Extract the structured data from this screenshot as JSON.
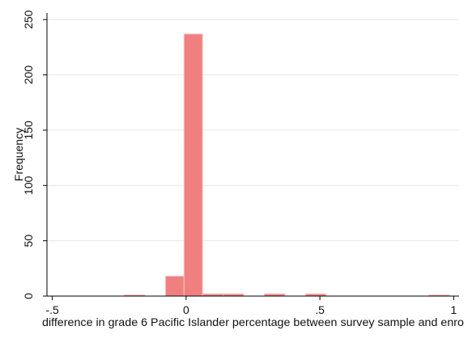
{
  "chart_data": {
    "type": "bar",
    "title": "",
    "xlabel": "difference in grade 6 Pacific Islander percentage between survey sample and enro",
    "ylabel": "Frequency",
    "xlim": [
      -0.52,
      1.02
    ],
    "ylim": [
      0,
      256
    ],
    "x_ticks": [
      {
        "value": -0.5,
        "label": "-.5"
      },
      {
        "value": 0,
        "label": "0"
      },
      {
        "value": 0.5,
        "label": ".5"
      },
      {
        "value": 1,
        "label": "1"
      }
    ],
    "y_ticks": [
      {
        "value": 0,
        "label": "0"
      },
      {
        "value": 50,
        "label": "50"
      },
      {
        "value": 100,
        "label": "100"
      },
      {
        "value": 150,
        "label": "150"
      },
      {
        "value": 200,
        "label": "200"
      },
      {
        "value": 250,
        "label": "250"
      }
    ],
    "bin_width": 0.0769,
    "bins": [
      {
        "start": -0.2308,
        "end": -0.1539,
        "count": 1
      },
      {
        "start": -0.0769,
        "end": -0.0077,
        "count": 18
      },
      {
        "start": -0.0077,
        "end": 0.0615,
        "count": 237
      },
      {
        "start": 0.0615,
        "end": 0.1385,
        "count": 2
      },
      {
        "start": 0.1385,
        "end": 0.2154,
        "count": 2
      },
      {
        "start": 0.2923,
        "end": 0.3692,
        "count": 2
      },
      {
        "start": 0.4462,
        "end": 0.5231,
        "count": 2
      },
      {
        "start": 0.9077,
        "end": 0.9846,
        "count": 1
      }
    ],
    "grid": true,
    "colors": {
      "bar_fill": "#f08080",
      "bar_stroke": "#f7c4c4",
      "grid": "#e6e6e6",
      "axis": "#000000"
    }
  }
}
